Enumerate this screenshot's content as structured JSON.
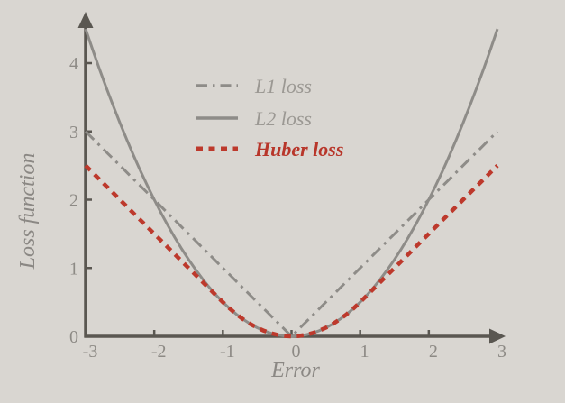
{
  "figure": {
    "background_color": "#d9d6d1",
    "axis_color": "#5a5751",
    "tick_label_color": "#8d8a85",
    "axis_label_color": "#8b8884"
  },
  "chart_data": {
    "type": "line",
    "title": "",
    "xlabel": "Error",
    "ylabel": "Loss function",
    "xlim": [
      -3,
      3
    ],
    "ylim": [
      0,
      4.7
    ],
    "x_tick_labels": [
      "-3",
      "-2",
      "-1",
      "0",
      "1",
      "2",
      "3"
    ],
    "x_tick_values": [
      -3,
      -2,
      -1,
      0,
      1,
      2,
      3
    ],
    "y_tick_labels": [
      "0",
      "1",
      "2",
      "3",
      "4"
    ],
    "y_tick_values": [
      0,
      1,
      2,
      3,
      4
    ],
    "grid": false,
    "legend_position": "upper-center, frameless",
    "x": [
      -3,
      -2.9,
      -2.8,
      -2.7,
      -2.6,
      -2.5,
      -2.4,
      -2.3,
      -2.2,
      -2.1,
      -2,
      -1.9,
      -1.8,
      -1.7,
      -1.6,
      -1.5,
      -1.4,
      -1.3,
      -1.2,
      -1.1,
      -1,
      -0.9,
      -0.8,
      -0.7,
      -0.6,
      -0.5,
      -0.4,
      -0.3,
      -0.2,
      -0.1,
      0,
      0.1,
      0.2,
      0.3,
      0.4,
      0.5,
      0.6,
      0.7,
      0.8,
      0.9,
      1,
      1.1,
      1.2,
      1.3,
      1.4,
      1.5,
      1.6,
      1.7,
      1.8,
      1.9,
      2,
      2.1,
      2.2,
      2.3,
      2.4,
      2.5,
      2.6,
      2.7,
      2.8,
      2.9,
      3
    ],
    "series": [
      {
        "name": "L1 loss",
        "style": "dashdot",
        "color": "#8e8c88",
        "label_color": "#9b9893",
        "label_weight": "normal",
        "width": 3,
        "values": [
          3,
          2.9,
          2.8,
          2.7,
          2.6,
          2.5,
          2.4,
          2.3,
          2.2,
          2.1,
          2,
          1.9,
          1.8,
          1.7,
          1.6,
          1.5,
          1.4,
          1.3,
          1.2,
          1.1,
          1,
          0.9,
          0.8,
          0.7,
          0.6,
          0.5,
          0.4,
          0.3,
          0.2,
          0.1,
          0,
          0.1,
          0.2,
          0.3,
          0.4,
          0.5,
          0.6,
          0.7,
          0.8,
          0.9,
          1,
          1.1,
          1.2,
          1.3,
          1.4,
          1.5,
          1.6,
          1.7,
          1.8,
          1.9,
          2,
          2.1,
          2.2,
          2.3,
          2.4,
          2.5,
          2.6,
          2.7,
          2.8,
          2.9,
          3
        ]
      },
      {
        "name": "L2 loss",
        "style": "solid",
        "color": "#8e8c88",
        "label_color": "#9b9893",
        "label_weight": "normal",
        "width": 3,
        "values": [
          4.5,
          4.205,
          3.92,
          3.645,
          3.38,
          3.125,
          2.88,
          2.645,
          2.42,
          2.205,
          2,
          1.805,
          1.62,
          1.445,
          1.28,
          1.125,
          0.98,
          0.845,
          0.72,
          0.605,
          0.5,
          0.405,
          0.32,
          0.245,
          0.18,
          0.125,
          0.08,
          0.045,
          0.02,
          0.005,
          0,
          0.005,
          0.02,
          0.045,
          0.08,
          0.125,
          0.18,
          0.245,
          0.32,
          0.405,
          0.5,
          0.605,
          0.72,
          0.845,
          0.98,
          1.125,
          1.28,
          1.445,
          1.62,
          1.805,
          2,
          2.205,
          2.42,
          2.645,
          2.88,
          3.125,
          3.38,
          3.645,
          3.92,
          4.205,
          4.5
        ]
      },
      {
        "name": "Huber loss",
        "style": "dashed",
        "color": "#bd392c",
        "label_color": "#b8362a",
        "label_weight": "bold",
        "width": 4.5,
        "values": [
          2.5,
          2.4,
          2.3,
          2.2,
          2.1,
          2,
          1.9,
          1.8,
          1.7,
          1.6,
          1.5,
          1.4,
          1.3,
          1.2,
          1.1,
          1,
          0.9,
          0.8,
          0.7,
          0.6,
          0.5,
          0.405,
          0.32,
          0.245,
          0.18,
          0.125,
          0.08,
          0.045,
          0.02,
          0.005,
          0,
          0.005,
          0.02,
          0.045,
          0.08,
          0.125,
          0.18,
          0.245,
          0.32,
          0.405,
          0.5,
          0.6,
          0.7,
          0.8,
          0.9,
          1,
          1.1,
          1.2,
          1.3,
          1.4,
          1.5,
          1.6,
          1.7,
          1.8,
          1.9,
          2,
          2.1,
          2.2,
          2.3,
          2.4,
          2.5
        ]
      }
    ]
  }
}
